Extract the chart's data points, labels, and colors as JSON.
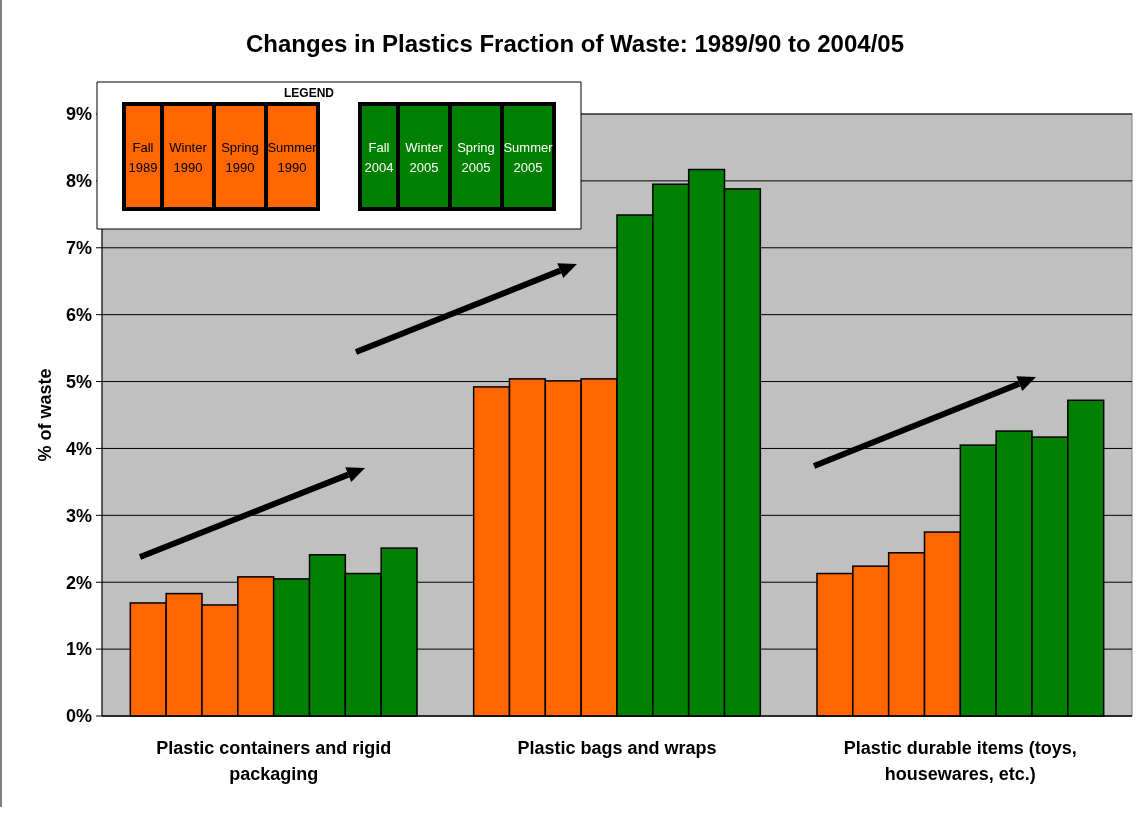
{
  "chart_data": {
    "type": "bar",
    "title": "Changes in Plastics Fraction of Waste: 1989/90 to 2004/05",
    "ylabel": "% of waste",
    "legend_title": "LEGEND",
    "legend": "top left",
    "grid": "y",
    "categories": [
      "Plastic containers and rigid packaging",
      "Plastic bags and wraps",
      "Plastic durable items (toys, housewares, etc.)"
    ],
    "ylim": [
      0,
      9
    ],
    "yticks": [
      {
        "value": 0,
        "label": "0%"
      },
      {
        "value": 1,
        "label": "1%"
      },
      {
        "value": 2,
        "label": "2%"
      },
      {
        "value": 3,
        "label": "3%"
      },
      {
        "value": 4,
        "label": "4%"
      },
      {
        "value": 5,
        "label": "5%"
      },
      {
        "value": 6,
        "label": "6%"
      },
      {
        "value": 7,
        "label": "7%"
      },
      {
        "value": 8,
        "label": "8%"
      },
      {
        "value": 9,
        "label": "9%"
      }
    ],
    "series": [
      {
        "name": "Fall 1989",
        "color": "#ff6600",
        "values": [
          1.69,
          4.92,
          2.13
        ]
      },
      {
        "name": "Winter 1990",
        "color": "#ff6600",
        "values": [
          1.83,
          5.04,
          2.24
        ]
      },
      {
        "name": "Spring 1990",
        "color": "#ff6600",
        "values": [
          1.66,
          5.01,
          2.44
        ]
      },
      {
        "name": "Summer 1990",
        "color": "#ff6600",
        "values": [
          2.08,
          5.04,
          2.75
        ]
      },
      {
        "name": "Fall 2004",
        "color": "#008000",
        "values": [
          2.05,
          7.49,
          4.05
        ]
      },
      {
        "name": "Winter 2005",
        "color": "#008000",
        "values": [
          2.41,
          7.95,
          4.26
        ]
      },
      {
        "name": "Spring 2005",
        "color": "#008000",
        "values": [
          2.13,
          8.17,
          4.17
        ]
      },
      {
        "name": "Summer 2005",
        "color": "#008000",
        "values": [
          2.51,
          7.88,
          4.72
        ]
      }
    ]
  }
}
